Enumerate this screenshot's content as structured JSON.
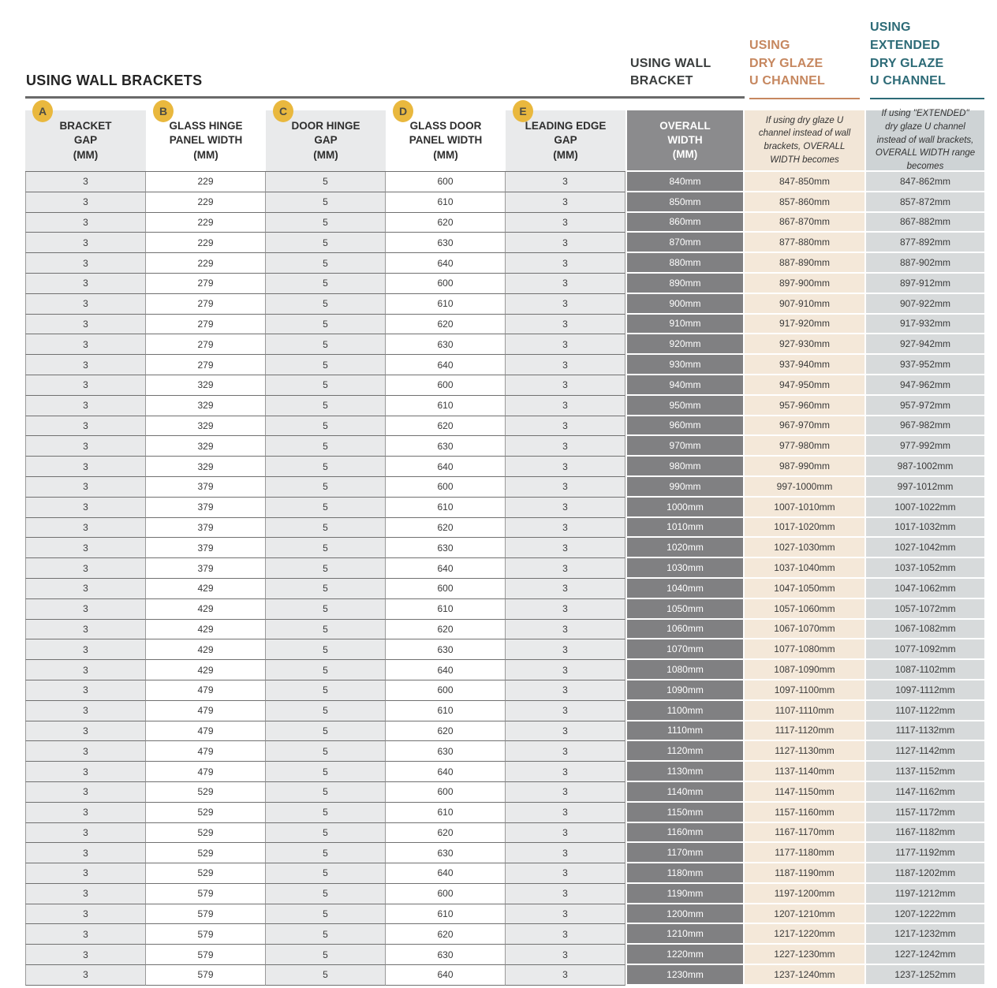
{
  "page": {
    "title": "USING WALL BRACKETS"
  },
  "right_headers": {
    "wall_bracket": "USING WALL\nBRACKET",
    "dry_glaze": "USING\nDRY GLAZE\nU CHANNEL",
    "extended_dry_glaze": "USING\nEXTENDED\nDRY GLAZE\nU CHANNEL"
  },
  "colors": {
    "accent_orange": "#c6875f",
    "accent_teal": "#2d6b77",
    "badge_yellow": "#e9b83e",
    "overall_column_gray": "#808082",
    "dry_glaze_beige": "#f4e8d9",
    "extended_gray_blue": "#d7dadb"
  },
  "table": {
    "columns": [
      {
        "badge": "A",
        "label": "BRACKET\nGAP\n(MM)"
      },
      {
        "badge": "B",
        "label": "GLASS HINGE\nPANEL WIDTH\n(MM)"
      },
      {
        "badge": "C",
        "label": "DOOR HINGE\nGAP\n(MM)"
      },
      {
        "badge": "D",
        "label": "GLASS DOOR\nPANEL WIDTH\n(MM)"
      },
      {
        "badge": "E",
        "label": "LEADING EDGE\nGAP\n(MM)"
      },
      {
        "label": "OVERALL\nWIDTH\n(MM)"
      },
      {
        "label": "If using dry glaze U channel instead of wall brackets, OVERALL WIDTH becomes"
      },
      {
        "label": "If using \"EXTENDED\" dry glaze U channel instead of wall brackets, OVERALL WIDTH range becomes"
      }
    ],
    "rows": [
      [
        "3",
        "229",
        "5",
        "600",
        "3",
        "840mm",
        "847-850mm",
        "847-862mm"
      ],
      [
        "3",
        "229",
        "5",
        "610",
        "3",
        "850mm",
        "857-860mm",
        "857-872mm"
      ],
      [
        "3",
        "229",
        "5",
        "620",
        "3",
        "860mm",
        "867-870mm",
        "867-882mm"
      ],
      [
        "3",
        "229",
        "5",
        "630",
        "3",
        "870mm",
        "877-880mm",
        "877-892mm"
      ],
      [
        "3",
        "229",
        "5",
        "640",
        "3",
        "880mm",
        "887-890mm",
        "887-902mm"
      ],
      [
        "3",
        "279",
        "5",
        "600",
        "3",
        "890mm",
        "897-900mm",
        "897-912mm"
      ],
      [
        "3",
        "279",
        "5",
        "610",
        "3",
        "900mm",
        "907-910mm",
        "907-922mm"
      ],
      [
        "3",
        "279",
        "5",
        "620",
        "3",
        "910mm",
        "917-920mm",
        "917-932mm"
      ],
      [
        "3",
        "279",
        "5",
        "630",
        "3",
        "920mm",
        "927-930mm",
        "927-942mm"
      ],
      [
        "3",
        "279",
        "5",
        "640",
        "3",
        "930mm",
        "937-940mm",
        "937-952mm"
      ],
      [
        "3",
        "329",
        "5",
        "600",
        "3",
        "940mm",
        "947-950mm",
        "947-962mm"
      ],
      [
        "3",
        "329",
        "5",
        "610",
        "3",
        "950mm",
        "957-960mm",
        "957-972mm"
      ],
      [
        "3",
        "329",
        "5",
        "620",
        "3",
        "960mm",
        "967-970mm",
        "967-982mm"
      ],
      [
        "3",
        "329",
        "5",
        "630",
        "3",
        "970mm",
        "977-980mm",
        "977-992mm"
      ],
      [
        "3",
        "329",
        "5",
        "640",
        "3",
        "980mm",
        "987-990mm",
        "987-1002mm"
      ],
      [
        "3",
        "379",
        "5",
        "600",
        "3",
        "990mm",
        "997-1000mm",
        "997-1012mm"
      ],
      [
        "3",
        "379",
        "5",
        "610",
        "3",
        "1000mm",
        "1007-1010mm",
        "1007-1022mm"
      ],
      [
        "3",
        "379",
        "5",
        "620",
        "3",
        "1010mm",
        "1017-1020mm",
        "1017-1032mm"
      ],
      [
        "3",
        "379",
        "5",
        "630",
        "3",
        "1020mm",
        "1027-1030mm",
        "1027-1042mm"
      ],
      [
        "3",
        "379",
        "5",
        "640",
        "3",
        "1030mm",
        "1037-1040mm",
        "1037-1052mm"
      ],
      [
        "3",
        "429",
        "5",
        "600",
        "3",
        "1040mm",
        "1047-1050mm",
        "1047-1062mm"
      ],
      [
        "3",
        "429",
        "5",
        "610",
        "3",
        "1050mm",
        "1057-1060mm",
        "1057-1072mm"
      ],
      [
        "3",
        "429",
        "5",
        "620",
        "3",
        "1060mm",
        "1067-1070mm",
        "1067-1082mm"
      ],
      [
        "3",
        "429",
        "5",
        "630",
        "3",
        "1070mm",
        "1077-1080mm",
        "1077-1092mm"
      ],
      [
        "3",
        "429",
        "5",
        "640",
        "3",
        "1080mm",
        "1087-1090mm",
        "1087-1102mm"
      ],
      [
        "3",
        "479",
        "5",
        "600",
        "3",
        "1090mm",
        "1097-1100mm",
        "1097-1112mm"
      ],
      [
        "3",
        "479",
        "5",
        "610",
        "3",
        "1100mm",
        "1107-1110mm",
        "1107-1122mm"
      ],
      [
        "3",
        "479",
        "5",
        "620",
        "3",
        "1110mm",
        "1117-1120mm",
        "1117-1132mm"
      ],
      [
        "3",
        "479",
        "5",
        "630",
        "3",
        "1120mm",
        "1127-1130mm",
        "1127-1142mm"
      ],
      [
        "3",
        "479",
        "5",
        "640",
        "3",
        "1130mm",
        "1137-1140mm",
        "1137-1152mm"
      ],
      [
        "3",
        "529",
        "5",
        "600",
        "3",
        "1140mm",
        "1147-1150mm",
        "1147-1162mm"
      ],
      [
        "3",
        "529",
        "5",
        "610",
        "3",
        "1150mm",
        "1157-1160mm",
        "1157-1172mm"
      ],
      [
        "3",
        "529",
        "5",
        "620",
        "3",
        "1160mm",
        "1167-1170mm",
        "1167-1182mm"
      ],
      [
        "3",
        "529",
        "5",
        "630",
        "3",
        "1170mm",
        "1177-1180mm",
        "1177-1192mm"
      ],
      [
        "3",
        "529",
        "5",
        "640",
        "3",
        "1180mm",
        "1187-1190mm",
        "1187-1202mm"
      ],
      [
        "3",
        "579",
        "5",
        "600",
        "3",
        "1190mm",
        "1197-1200mm",
        "1197-1212mm"
      ],
      [
        "3",
        "579",
        "5",
        "610",
        "3",
        "1200mm",
        "1207-1210mm",
        "1207-1222mm"
      ],
      [
        "3",
        "579",
        "5",
        "620",
        "3",
        "1210mm",
        "1217-1220mm",
        "1217-1232mm"
      ],
      [
        "3",
        "579",
        "5",
        "630",
        "3",
        "1220mm",
        "1227-1230mm",
        "1227-1242mm"
      ],
      [
        "3",
        "579",
        "5",
        "640",
        "3",
        "1230mm",
        "1237-1240mm",
        "1237-1252mm"
      ]
    ]
  }
}
